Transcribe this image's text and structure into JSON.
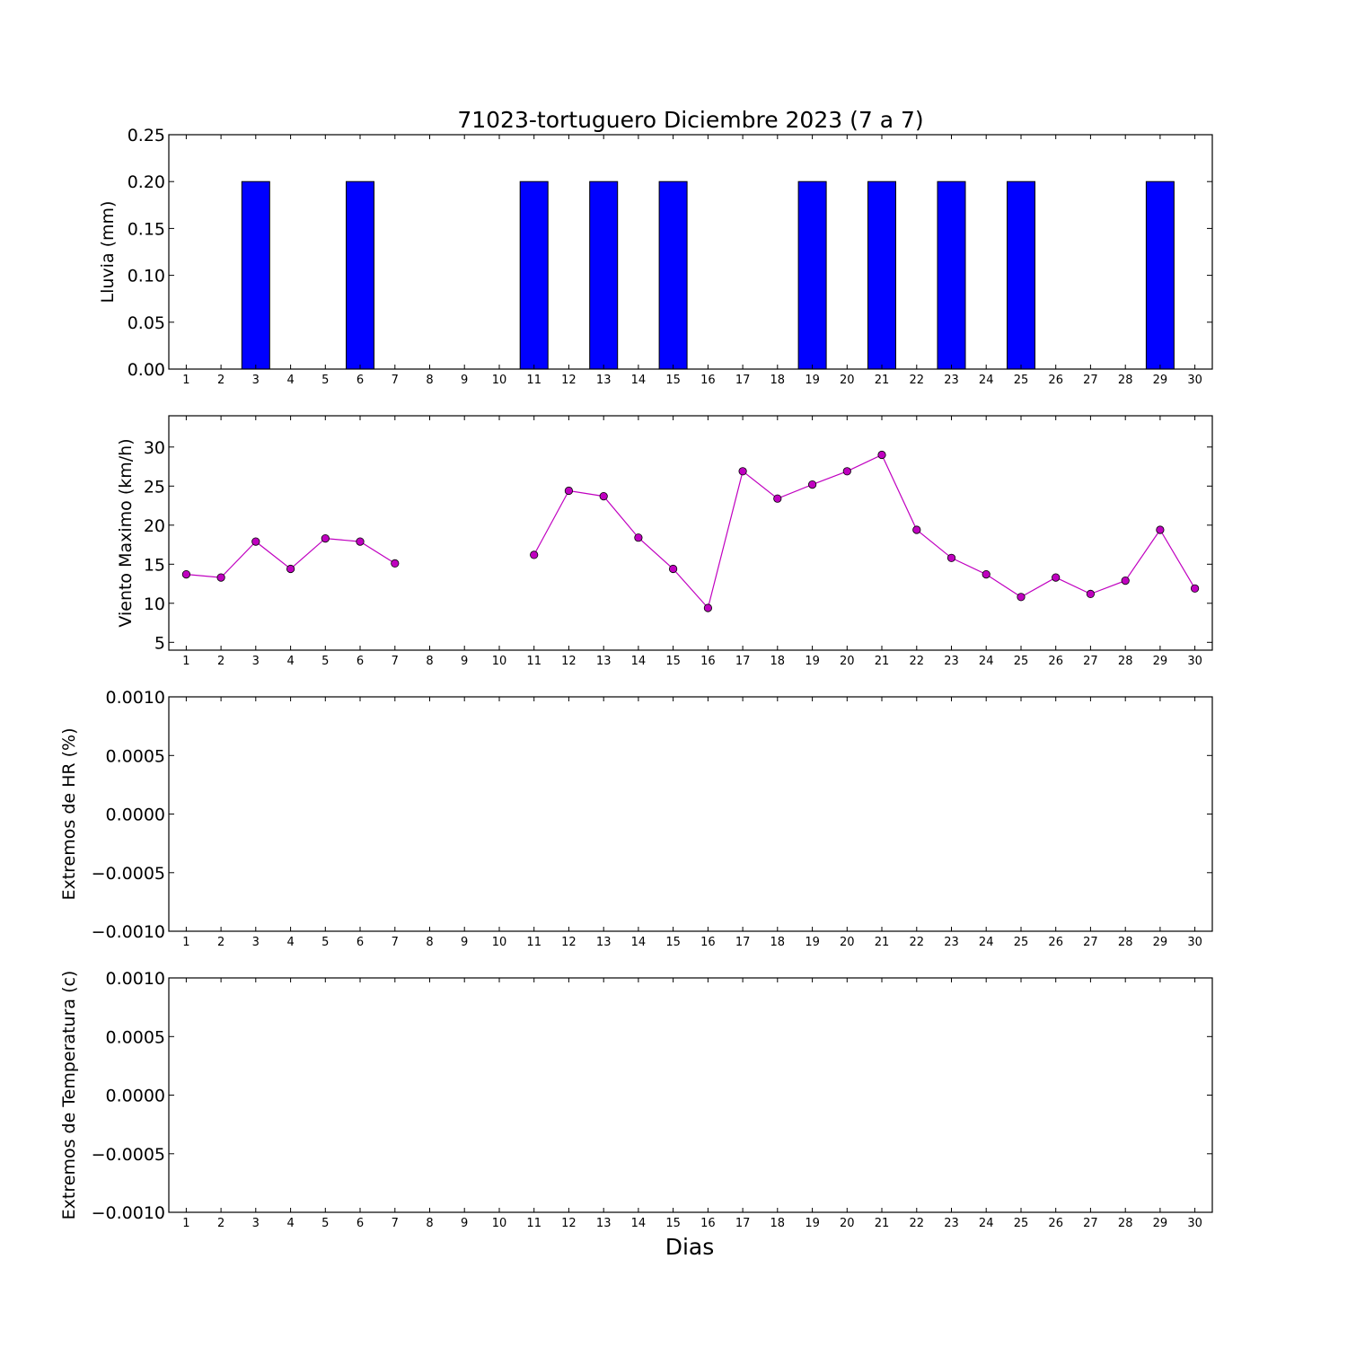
{
  "chart_data": {
    "title": "71023-tortuguero Diciembre 2023  (7 a 7)",
    "xlabel": "Dias",
    "x": [
      1,
      2,
      3,
      4,
      5,
      6,
      7,
      8,
      9,
      10,
      11,
      12,
      13,
      14,
      15,
      16,
      17,
      18,
      19,
      20,
      21,
      22,
      23,
      24,
      25,
      26,
      27,
      28,
      29,
      30
    ],
    "panels": [
      {
        "type": "bar",
        "ylabel": "Lluvia (mm)",
        "ylim": [
          0,
          0.25
        ],
        "yticks": [
          "0.00",
          "0.05",
          "0.10",
          "0.15",
          "0.20",
          "0.25"
        ],
        "color": "#0000ff",
        "values": [
          0,
          0,
          0.2,
          0,
          0,
          0.2,
          0,
          null,
          null,
          null,
          0.2,
          0,
          0.2,
          0,
          0.2,
          0,
          0,
          0,
          0.2,
          0,
          0.2,
          0,
          0.2,
          0,
          0.2,
          0,
          0,
          0,
          0.2,
          0
        ]
      },
      {
        "type": "line",
        "ylabel": "Viento Maximo (km/h)",
        "ylim": [
          4,
          34
        ],
        "yticks": [
          "5",
          "10",
          "15",
          "20",
          "25",
          "30"
        ],
        "color": "#c000c0",
        "values": [
          13.7,
          13.3,
          17.9,
          14.4,
          18.3,
          17.9,
          15.1,
          null,
          null,
          null,
          16.2,
          24.4,
          23.7,
          18.4,
          14.4,
          9.4,
          26.9,
          23.4,
          25.2,
          26.9,
          29.0,
          19.4,
          15.8,
          13.7,
          10.8,
          13.3,
          11.2,
          12.9,
          19.4,
          11.9
        ]
      },
      {
        "type": "line",
        "ylabel": "Extremos de HR (%)",
        "ylim": [
          -0.001,
          0.001
        ],
        "yticks": [
          "−0.0010",
          "−0.0005",
          "0.0000",
          "0.0005",
          "0.0010"
        ],
        "values": []
      },
      {
        "type": "line",
        "ylabel": "Extremos de Temperatura (c)",
        "ylim": [
          -0.001,
          0.001
        ],
        "yticks": [
          "−0.0010",
          "−0.0005",
          "0.0000",
          "0.0005",
          "0.0010"
        ],
        "values": []
      }
    ]
  }
}
